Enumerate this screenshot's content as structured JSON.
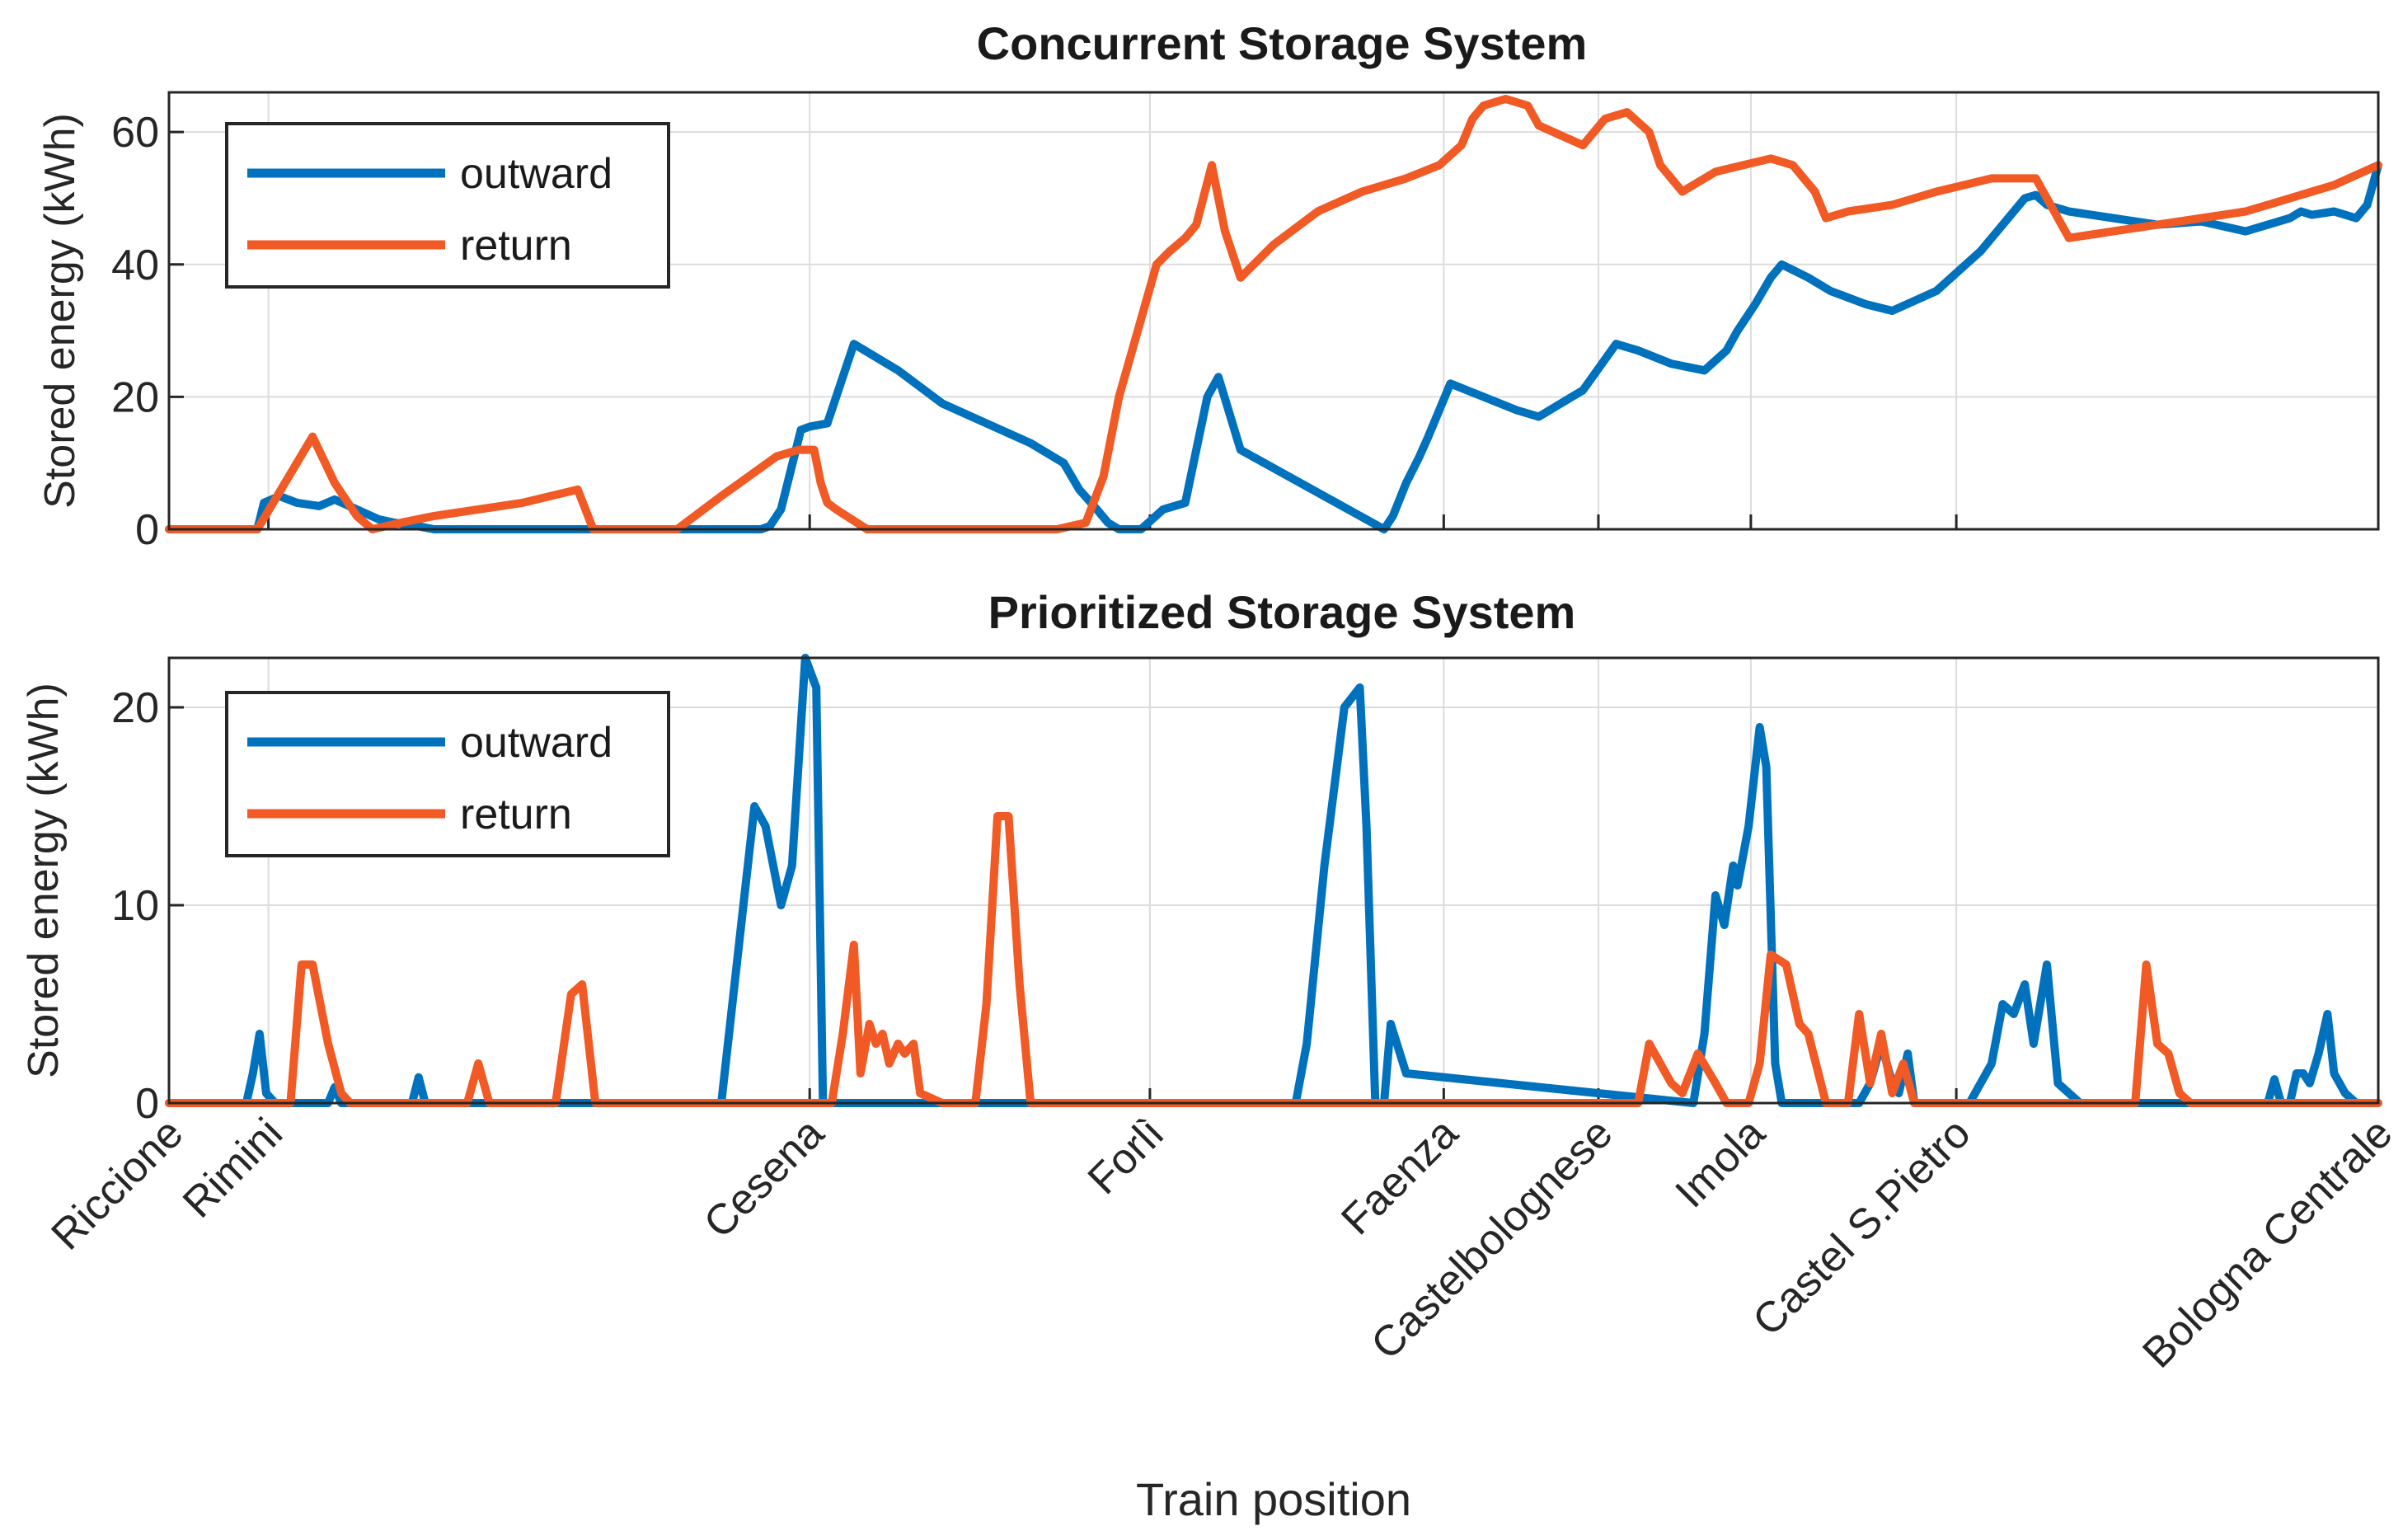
{
  "figure": {
    "xlabel": "Train position"
  },
  "colors": {
    "outward": "#0072bd",
    "return": "#f15a24",
    "grid": "#dcdcdc",
    "axis": "#262626"
  },
  "chart_data": [
    {
      "type": "line",
      "title": "Concurrent Storage System",
      "ylabel": "Stored energy (kWh)",
      "xlim": [
        0,
        100
      ],
      "ylim": [
        0,
        66
      ],
      "yticks": [
        0,
        20,
        40,
        60
      ],
      "grid": true,
      "legend_position": "top-left",
      "series": [
        {
          "name": "outward",
          "color": "#0072bd",
          "x": [
            0,
            4,
            4.3,
            5,
            5.8,
            6.8,
            7.5,
            8.5,
            9.5,
            10.2,
            11.2,
            12,
            15,
            19,
            22,
            25,
            26.8,
            27.2,
            27.7,
            28.6,
            29,
            29.8,
            31,
            33,
            35,
            37,
            39,
            40.5,
            41.2,
            42,
            42.5,
            43,
            44,
            45,
            46,
            47,
            47.5,
            48.5,
            55,
            55.4,
            56,
            56.6,
            57,
            58,
            59.5,
            61,
            62,
            63,
            64,
            65.5,
            66.5,
            68,
            69.5,
            70.5,
            71,
            71.8,
            72.5,
            73,
            74.2,
            75.2,
            76,
            76.8,
            78,
            80,
            82,
            84,
            84.5,
            85,
            86,
            88,
            90,
            92,
            94,
            96,
            96.5,
            97,
            98,
            99,
            99.5,
            100
          ],
          "y": [
            0,
            0,
            4,
            5,
            4,
            3.5,
            4.5,
            3,
            1.5,
            1,
            0.5,
            0,
            0,
            0,
            0,
            0,
            0,
            0.5,
            3,
            15,
            15.5,
            16,
            28,
            24,
            19,
            16,
            13,
            10,
            6,
            3,
            1,
            0,
            0,
            3,
            4,
            20,
            23,
            12,
            0,
            2,
            7,
            11,
            14,
            22,
            20,
            18,
            17,
            19,
            21,
            28,
            27,
            25,
            24,
            27,
            30,
            34,
            38,
            40,
            38,
            36,
            35,
            34,
            33,
            36,
            42,
            50,
            50.5,
            49,
            48,
            47,
            46,
            46.5,
            45,
            47,
            48,
            47.5,
            48,
            47,
            49,
            55
          ]
        },
        {
          "name": "return",
          "color": "#f15a24",
          "x": [
            0,
            4,
            6.5,
            7.5,
            8.5,
            9.2,
            10.5,
            12,
            14,
            16,
            18.5,
            19.2,
            21.5,
            23,
            25,
            27.5,
            28.5,
            29.2,
            29.5,
            29.8,
            30.2,
            31.6,
            32.1,
            32.5,
            33,
            33.5,
            34,
            36,
            38,
            40.2,
            41.5,
            42.3,
            43,
            44.7,
            45.3,
            46,
            46.5,
            47.2,
            47.8,
            48.5,
            50,
            52,
            54,
            56,
            57.5,
            58.5,
            59,
            59.5,
            60.5,
            61.5,
            62,
            64,
            65,
            66,
            67,
            67.5,
            68.5,
            69,
            70,
            72.5,
            73.5,
            74.5,
            75,
            76,
            78,
            80,
            82.5,
            84.5,
            85,
            86,
            88,
            90,
            92,
            94,
            96,
            98,
            100
          ],
          "y": [
            0,
            0,
            14,
            7,
            2,
            0,
            1,
            2,
            3,
            4,
            6,
            0,
            0,
            0,
            5,
            11,
            12,
            12,
            7,
            4,
            3,
            0,
            0,
            0,
            0,
            0,
            0,
            0,
            0,
            0,
            1,
            8,
            20,
            40,
            42,
            44,
            46,
            55,
            45,
            38,
            43,
            48,
            51,
            53,
            55,
            58,
            62,
            64,
            65,
            64,
            61,
            58,
            62,
            63,
            60,
            55,
            51,
            52,
            54,
            56,
            55,
            51,
            47,
            48,
            49,
            51,
            53,
            53,
            50,
            44,
            45,
            46,
            47,
            48,
            50,
            52,
            55
          ]
        }
      ]
    },
    {
      "type": "line",
      "title": "Prioritized Storage System",
      "ylabel": "Stored energy (kWh)",
      "xlim": [
        0,
        100
      ],
      "ylim": [
        0,
        22.5
      ],
      "yticks": [
        0,
        10,
        20
      ],
      "grid": true,
      "legend_position": "top-left",
      "series": [
        {
          "name": "outward",
          "color": "#0072bd",
          "x": [
            0,
            3.5,
            3.8,
            4.1,
            4.4,
            4.8,
            7.2,
            7.5,
            7.8,
            11,
            11.3,
            11.6,
            25,
            25.8,
            26.5,
            27,
            27.7,
            28.2,
            28.8,
            29.3,
            29.6,
            30.5,
            51,
            51.5,
            52.3,
            53.2,
            53.9,
            54.2,
            54.6,
            55,
            55.3,
            56,
            69,
            69.5,
            70,
            70.4,
            70.8,
            71,
            71.5,
            72,
            72.3,
            72.7,
            73,
            74,
            76.5,
            77,
            77.5,
            78,
            78.3,
            78.7,
            79,
            80,
            81.5,
            82.5,
            83,
            83.5,
            84,
            84.4,
            85,
            85.5,
            86.5,
            95,
            95.3,
            95.6,
            96,
            96.3,
            96.6,
            96.9,
            97.3,
            97.7,
            98,
            98.5,
            99,
            99.5,
            100
          ],
          "y": [
            0,
            0,
            1.5,
            3.5,
            0.5,
            0,
            0,
            0.8,
            0,
            0,
            1.3,
            0,
            0,
            8,
            15,
            14,
            10,
            12,
            22.5,
            21,
            0,
            0,
            0,
            3,
            12,
            20,
            21,
            14,
            0,
            0,
            4,
            1.5,
            0,
            3.5,
            10.5,
            9,
            12,
            11,
            14,
            19,
            17,
            2,
            0,
            0,
            0,
            1,
            3,
            1,
            0.5,
            2.5,
            0,
            0,
            0,
            2,
            5,
            4.5,
            6,
            3,
            7,
            1,
            0,
            0,
            1.2,
            0,
            0,
            1.5,
            1.5,
            1,
            2.5,
            4.5,
            1.5,
            0.5,
            0,
            0,
            0
          ]
        },
        {
          "name": "return",
          "color": "#f15a24",
          "x": [
            0,
            5.5,
            6,
            6.5,
            7.2,
            7.8,
            8.2,
            13.5,
            14,
            14.5,
            17.5,
            18.2,
            18.7,
            19.3,
            30,
            30.5,
            31,
            31.3,
            31.7,
            32,
            32.3,
            32.6,
            33,
            33.3,
            33.7,
            34,
            35,
            36.5,
            37,
            37.5,
            38,
            38.5,
            39,
            40,
            66.5,
            67,
            67.5,
            68,
            68.5,
            69.2,
            70,
            70.5,
            71,
            71.5,
            72,
            72.5,
            73.2,
            73.8,
            74.2,
            75,
            76,
            76.5,
            77,
            77.5,
            78,
            78.5,
            79,
            80,
            89,
            89.5,
            90,
            90.5,
            91,
            91.5,
            100
          ],
          "y": [
            0,
            0,
            7,
            7,
            3,
            0.5,
            0,
            0,
            2,
            0,
            0,
            5.5,
            6,
            0,
            0,
            3.5,
            8,
            1.5,
            4,
            3,
            3.5,
            2,
            3,
            2.5,
            3,
            0.5,
            0,
            0,
            5,
            14.5,
            14.5,
            6,
            0,
            0,
            0,
            3,
            2,
            1,
            0.5,
            2.5,
            1,
            0,
            0,
            0,
            2,
            7.5,
            7,
            4,
            3.5,
            0,
            0,
            4.5,
            1,
            3.5,
            0.5,
            2,
            0,
            0,
            0,
            7,
            3,
            2.5,
            0.5,
            0,
            0
          ]
        }
      ]
    }
  ],
  "stations": {
    "labels": [
      "Riccione",
      "Rimini",
      "Cesena",
      "Forlì",
      "Faenza",
      "Castelbolognese",
      "Imola",
      "Castel S.Pietro",
      "Bologna Centrale"
    ],
    "positions": [
      0,
      4.5,
      29,
      44.4,
      57.7,
      64.7,
      71.6,
      80.9,
      100
    ]
  }
}
